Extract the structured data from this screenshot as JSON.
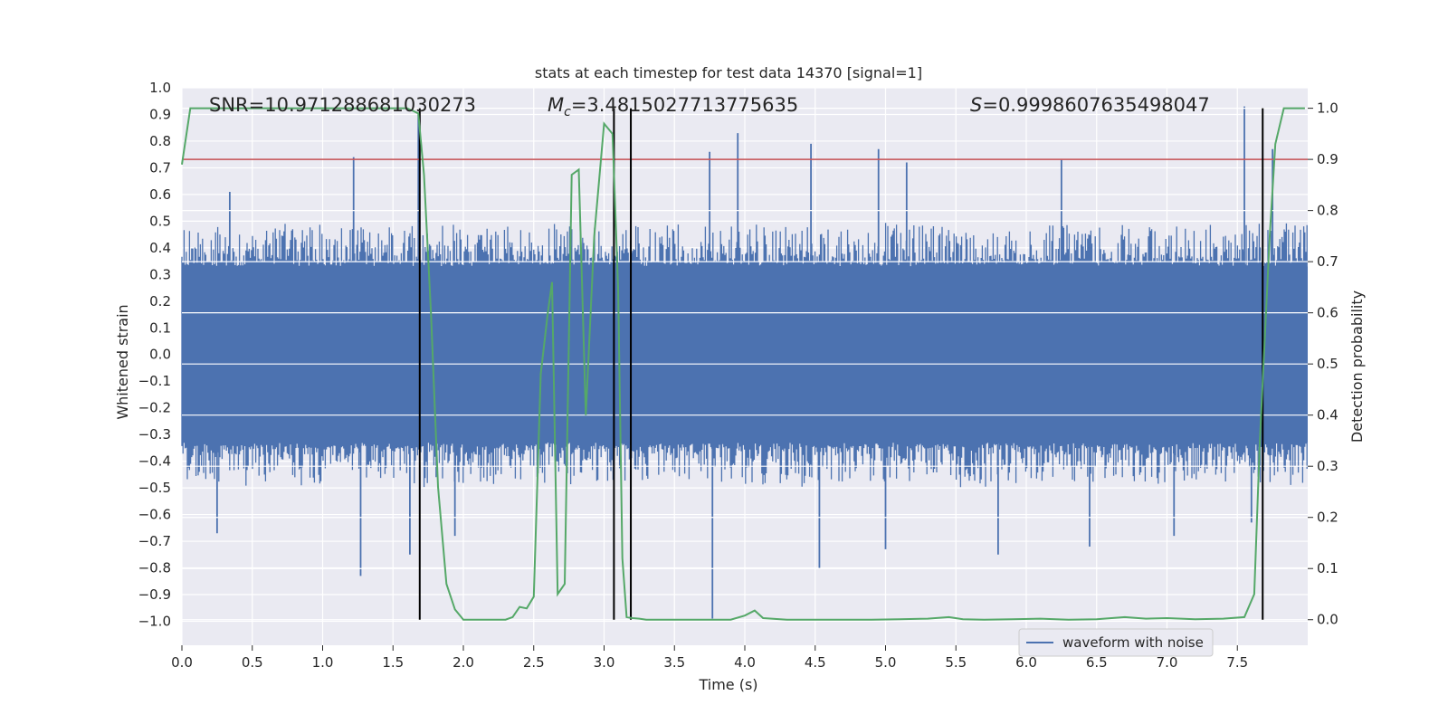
{
  "chart_data": {
    "type": "line",
    "title": "stats at each timestep for test data 14370 [signal=1]",
    "xlabel": "Time (s)",
    "ylabel": "Whitened strain",
    "y2label": "Detection probability",
    "xlim": [
      0.0,
      8.0
    ],
    "ylim": [
      -1.09,
      1.0
    ],
    "y2lim": [
      -0.05,
      1.04
    ],
    "x_ticks": [
      0.0,
      0.5,
      1.0,
      1.5,
      2.0,
      2.5,
      3.0,
      3.5,
      4.0,
      4.5,
      5.0,
      5.5,
      6.0,
      6.5,
      7.0,
      7.5
    ],
    "x_tick_labels": [
      "0.0",
      "0.5",
      "1.0",
      "1.5",
      "2.0",
      "2.5",
      "3.0",
      "3.5",
      "4.0",
      "4.5",
      "5.0",
      "5.5",
      "6.0",
      "6.5",
      "7.0",
      "7.5"
    ],
    "y_ticks": [
      1.0,
      0.9,
      0.8,
      0.7,
      0.6,
      0.5,
      0.4,
      0.3,
      0.2,
      0.1,
      0.0,
      -0.1,
      -0.2,
      -0.3,
      -0.4,
      -0.5,
      -0.6,
      -0.7,
      -0.8,
      -0.9,
      -1.0
    ],
    "y_tick_labels": [
      "1.0",
      "0.9",
      "0.8",
      "0.7",
      "0.6",
      "0.5",
      "0.4",
      "0.3",
      "0.2",
      "0.1",
      "0.0",
      "−0.1",
      "−0.2",
      "−0.3",
      "−0.4",
      "−0.5",
      "−0.6",
      "−0.7",
      "−0.8",
      "−0.9",
      "−1.0"
    ],
    "y2_ticks": [
      1.0,
      0.9,
      0.8,
      0.7,
      0.6,
      0.5,
      0.4,
      0.3,
      0.2,
      0.1,
      0.0
    ],
    "y2_tick_labels": [
      "1.0",
      "0.9",
      "0.8",
      "0.7",
      "0.6",
      "0.5",
      "0.4",
      "0.3",
      "0.2",
      "0.1",
      "0.0"
    ],
    "grid": true,
    "legend": {
      "location": "lower-right",
      "entries": [
        "waveform with noise"
      ]
    },
    "annotations": {
      "snr": "SNR=10.971288681030273",
      "mc_symbol": "M",
      "mc_subscript": "c",
      "mc_value": "=3.4815027713775635",
      "s_symbol": "S",
      "s_value": "=0.9998607635498047"
    },
    "waveform": {
      "name": "waveform with noise",
      "color": "#4c72b0",
      "core_band": [
        -0.33,
        0.33
      ],
      "typical_peak": [
        0.35,
        0.5
      ],
      "notable_peaks": [
        {
          "x": 1.22,
          "y": 0.74
        },
        {
          "x": 1.68,
          "y": 0.9
        },
        {
          "x": 3.75,
          "y": 0.76
        },
        {
          "x": 3.95,
          "y": 0.83
        },
        {
          "x": 4.47,
          "y": 0.79
        },
        {
          "x": 4.95,
          "y": 0.77
        },
        {
          "x": 7.55,
          "y": 0.93
        },
        {
          "x": 7.75,
          "y": 0.77
        },
        {
          "x": 5.15,
          "y": 0.72
        },
        {
          "x": 6.25,
          "y": 0.73
        },
        {
          "x": 0.34,
          "y": 0.61
        }
      ],
      "notable_troughs": [
        {
          "x": 1.27,
          "y": -0.83
        },
        {
          "x": 1.62,
          "y": -0.75
        },
        {
          "x": 3.77,
          "y": -0.99
        },
        {
          "x": 4.53,
          "y": -0.8
        },
        {
          "x": 5.8,
          "y": -0.75
        },
        {
          "x": 6.45,
          "y": -0.72
        },
        {
          "x": 1.94,
          "y": -0.68
        },
        {
          "x": 0.25,
          "y": -0.67
        },
        {
          "x": 7.05,
          "y": -0.68
        },
        {
          "x": 5.0,
          "y": -0.73
        },
        {
          "x": 7.6,
          "y": -0.63
        }
      ]
    },
    "detection_probability": {
      "name": "Detection probability",
      "color": "#55a868",
      "x": [
        0.0,
        0.06,
        0.2,
        0.4,
        0.6,
        0.8,
        1.0,
        1.2,
        1.4,
        1.6,
        1.64,
        1.68,
        1.72,
        1.77,
        1.82,
        1.88,
        1.94,
        2.0,
        2.1,
        2.2,
        2.3,
        2.35,
        2.4,
        2.45,
        2.5,
        2.55,
        2.6,
        2.63,
        2.67,
        2.72,
        2.77,
        2.82,
        2.87,
        2.93,
        3.0,
        3.06,
        3.1,
        3.13,
        3.16,
        3.2,
        3.25,
        3.3,
        3.35,
        3.5,
        3.7,
        3.9,
        4.0,
        4.07,
        4.13,
        4.3,
        4.6,
        4.9,
        5.1,
        5.3,
        5.45,
        5.55,
        5.7,
        5.9,
        6.1,
        6.3,
        6.5,
        6.7,
        6.85,
        7.0,
        7.2,
        7.4,
        7.55,
        7.62,
        7.66,
        7.73,
        7.77,
        7.83,
        7.9,
        7.98
      ],
      "y": [
        0.89,
        1.0,
        1.0,
        1.0,
        1.0,
        1.0,
        1.0,
        1.0,
        1.0,
        1.0,
        0.995,
        0.99,
        0.87,
        0.6,
        0.26,
        0.07,
        0.02,
        0.0,
        0.0,
        0.0,
        0.0,
        0.005,
        0.025,
        0.022,
        0.045,
        0.48,
        0.6,
        0.66,
        0.05,
        0.07,
        0.87,
        0.88,
        0.4,
        0.75,
        0.97,
        0.95,
        0.65,
        0.12,
        0.005,
        0.003,
        0.002,
        0.0,
        0.0,
        0.0,
        0.0,
        0.0,
        0.008,
        0.018,
        0.003,
        0.0,
        0.0,
        0.0,
        0.001,
        0.002,
        0.005,
        0.001,
        0.0,
        0.001,
        0.002,
        0.0,
        0.001,
        0.005,
        0.002,
        0.003,
        0.001,
        0.002,
        0.005,
        0.05,
        0.35,
        0.75,
        0.93,
        1.0,
        1.0,
        1.0
      ]
    },
    "threshold": {
      "value": 0.9,
      "color": "#c44e52"
    },
    "event_markers": {
      "x": [
        1.69,
        3.07,
        3.19,
        7.68
      ],
      "y_top": 1.0,
      "y_bottom": 0.0,
      "color": "#000000"
    },
    "colors": {
      "plot_background": "#eaeaf2",
      "grid": "#ffffff",
      "text": "#262626"
    }
  }
}
